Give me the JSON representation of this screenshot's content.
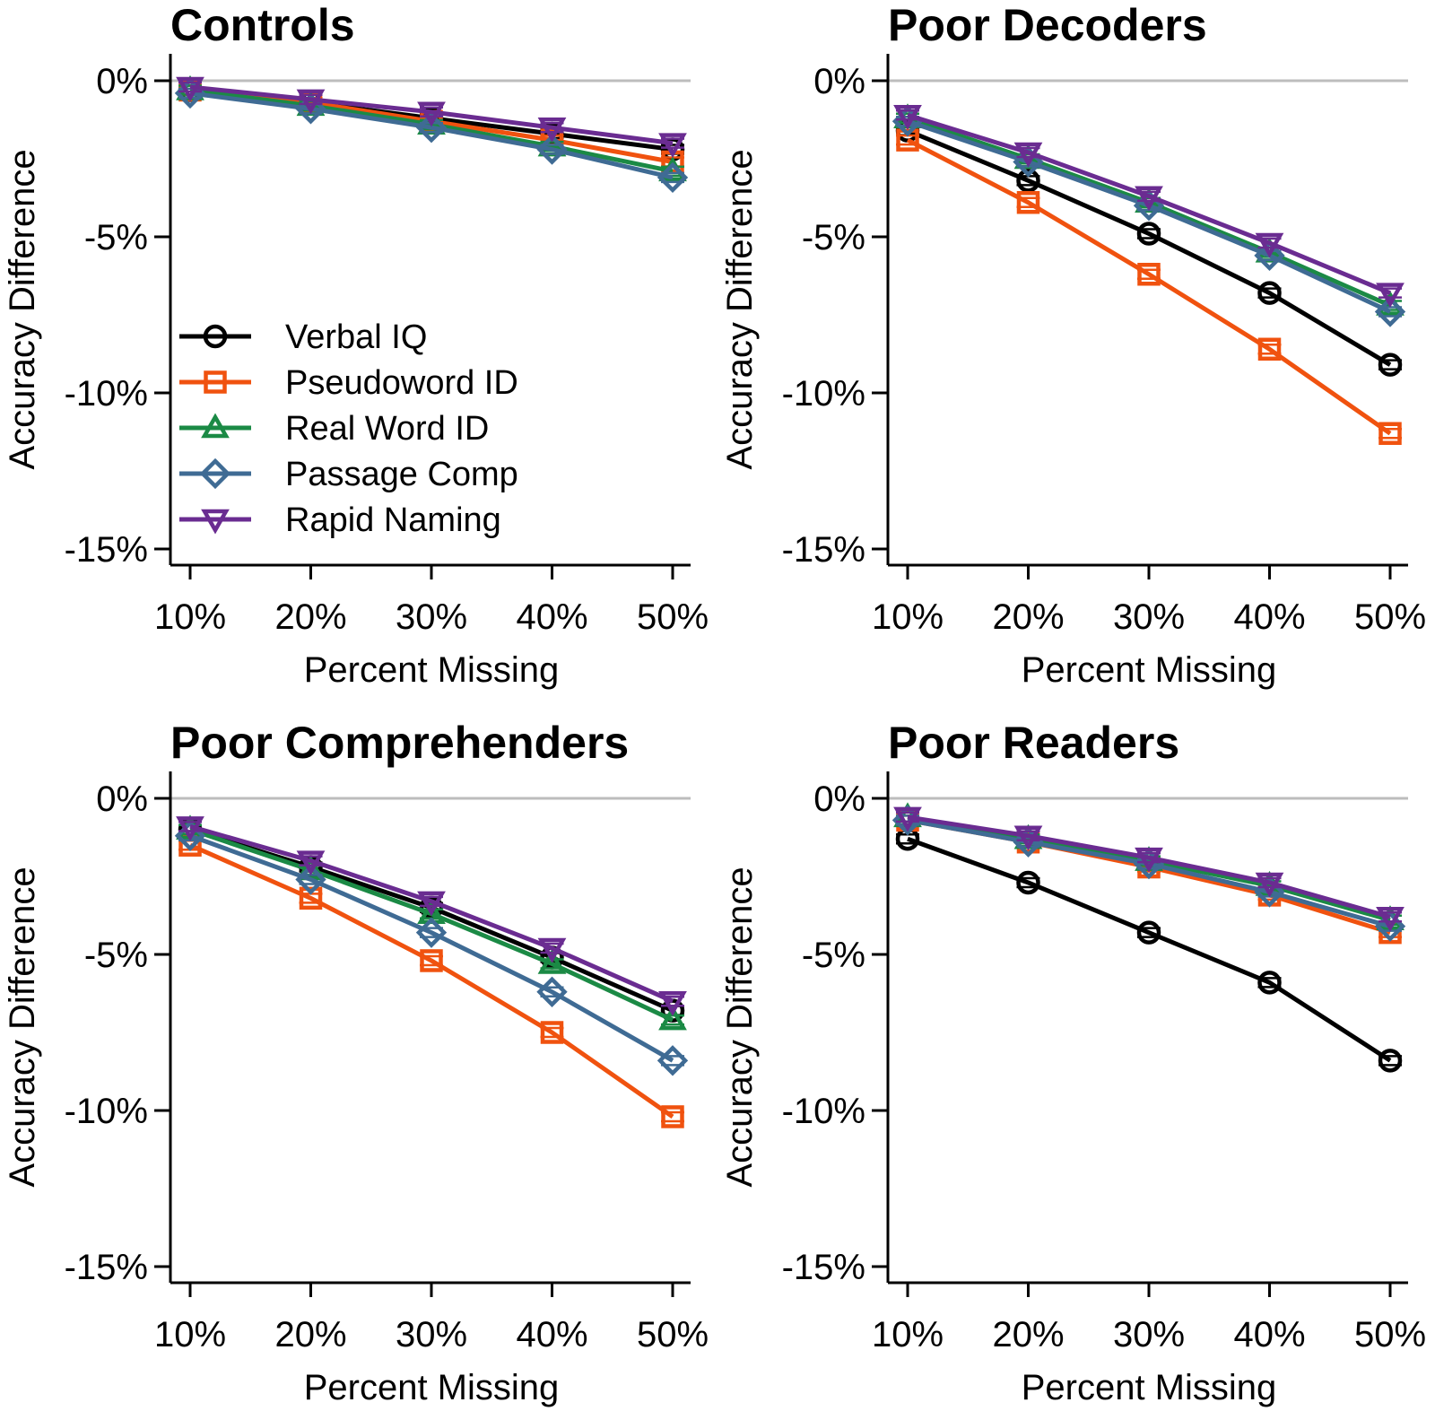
{
  "colors": {
    "Verbal IQ": "#000000",
    "Pseudoword ID": "#f0520f",
    "Real Word ID": "#1b8a45",
    "Passage Comp": "#3f6b94",
    "Rapid Naming": "#6a2c91",
    "zero_line": "#bdbdbd"
  },
  "chart_data": [
    {
      "type": "line",
      "title": "Controls",
      "xlabel": "Percent Missing",
      "ylabel": "Accuracy Difference",
      "categories": [
        "10%",
        "20%",
        "30%",
        "40%",
        "50%"
      ],
      "yticks": [
        0,
        -5,
        -10,
        -15
      ],
      "ytick_labels": [
        "0%",
        "-5%",
        "-10%",
        "-15%"
      ],
      "ylim": [
        -15.6,
        0.6
      ],
      "legend": "left",
      "series": [
        {
          "name": "Verbal IQ",
          "marker": "circle",
          "values": [
            -0.3,
            -0.7,
            -1.2,
            -1.7,
            -2.2
          ]
        },
        {
          "name": "Pseudoword ID",
          "marker": "square",
          "values": [
            -0.3,
            -0.7,
            -1.3,
            -1.9,
            -2.6
          ]
        },
        {
          "name": "Real Word ID",
          "marker": "triangle-up",
          "values": [
            -0.3,
            -0.8,
            -1.4,
            -2.1,
            -2.9
          ]
        },
        {
          "name": "Passage Comp",
          "marker": "diamond",
          "values": [
            -0.4,
            -0.9,
            -1.5,
            -2.2,
            -3.1
          ]
        },
        {
          "name": "Rapid Naming",
          "marker": "triangle-down",
          "values": [
            -0.2,
            -0.6,
            -1.0,
            -1.5,
            -2.0
          ]
        }
      ]
    },
    {
      "type": "line",
      "title": "Poor Decoders",
      "xlabel": "Percent Missing",
      "ylabel": "Accuracy Difference",
      "categories": [
        "10%",
        "20%",
        "30%",
        "40%",
        "50%"
      ],
      "yticks": [
        0,
        -5,
        -10,
        -15
      ],
      "ytick_labels": [
        "0%",
        "-5%",
        "-10%",
        "-15%"
      ],
      "ylim": [
        -15.6,
        0.6
      ],
      "legend": "none",
      "series": [
        {
          "name": "Verbal IQ",
          "marker": "circle",
          "values": [
            -1.6,
            -3.2,
            -4.9,
            -6.8,
            -9.1
          ]
        },
        {
          "name": "Pseudoword ID",
          "marker": "square",
          "values": [
            -1.9,
            -3.9,
            -6.2,
            -8.6,
            -11.3
          ]
        },
        {
          "name": "Real Word ID",
          "marker": "triangle-up",
          "values": [
            -1.2,
            -2.5,
            -3.9,
            -5.5,
            -7.2
          ]
        },
        {
          "name": "Passage Comp",
          "marker": "diamond",
          "values": [
            -1.3,
            -2.6,
            -4.0,
            -5.6,
            -7.4
          ]
        },
        {
          "name": "Rapid Naming",
          "marker": "triangle-down",
          "values": [
            -1.1,
            -2.3,
            -3.7,
            -5.2,
            -6.8
          ]
        }
      ]
    },
    {
      "type": "line",
      "title": "Poor Comprehenders",
      "xlabel": "Percent Missing",
      "ylabel": "Accuracy Difference",
      "categories": [
        "10%",
        "20%",
        "30%",
        "40%",
        "50%"
      ],
      "yticks": [
        0,
        -5,
        -10,
        -15
      ],
      "ytick_labels": [
        "0%",
        "-5%",
        "-10%",
        "-15%"
      ],
      "ylim": [
        -15.6,
        0.6
      ],
      "legend": "none",
      "series": [
        {
          "name": "Verbal IQ",
          "marker": "circle",
          "values": [
            -1.0,
            -2.2,
            -3.5,
            -5.1,
            -6.8
          ]
        },
        {
          "name": "Pseudoword ID",
          "marker": "square",
          "values": [
            -1.5,
            -3.2,
            -5.2,
            -7.5,
            -10.2
          ]
        },
        {
          "name": "Real Word ID",
          "marker": "triangle-up",
          "values": [
            -1.0,
            -2.3,
            -3.7,
            -5.3,
            -7.1
          ]
        },
        {
          "name": "Passage Comp",
          "marker": "diamond",
          "values": [
            -1.2,
            -2.6,
            -4.3,
            -6.2,
            -8.4
          ]
        },
        {
          "name": "Rapid Naming",
          "marker": "triangle-down",
          "values": [
            -0.9,
            -2.0,
            -3.3,
            -4.8,
            -6.5
          ]
        }
      ]
    },
    {
      "type": "line",
      "title": "Poor Readers",
      "xlabel": "Percent Missing",
      "ylabel": "Accuracy Difference",
      "categories": [
        "10%",
        "20%",
        "30%",
        "40%",
        "50%"
      ],
      "yticks": [
        0,
        -5,
        -10,
        -15
      ],
      "ytick_labels": [
        "0%",
        "-5%",
        "-10%",
        "-15%"
      ],
      "ylim": [
        -15.6,
        0.6
      ],
      "legend": "none",
      "series": [
        {
          "name": "Verbal IQ",
          "marker": "circle",
          "values": [
            -1.3,
            -2.7,
            -4.3,
            -5.9,
            -8.4
          ]
        },
        {
          "name": "Pseudoword ID",
          "marker": "square",
          "values": [
            -0.7,
            -1.4,
            -2.2,
            -3.1,
            -4.3
          ]
        },
        {
          "name": "Real Word ID",
          "marker": "triangle-up",
          "values": [
            -0.6,
            -1.3,
            -2.0,
            -2.8,
            -3.9
          ]
        },
        {
          "name": "Passage Comp",
          "marker": "diamond",
          "values": [
            -0.7,
            -1.4,
            -2.1,
            -3.0,
            -4.1
          ]
        },
        {
          "name": "Rapid Naming",
          "marker": "triangle-down",
          "values": [
            -0.6,
            -1.2,
            -1.9,
            -2.7,
            -3.8
          ]
        }
      ]
    }
  ]
}
